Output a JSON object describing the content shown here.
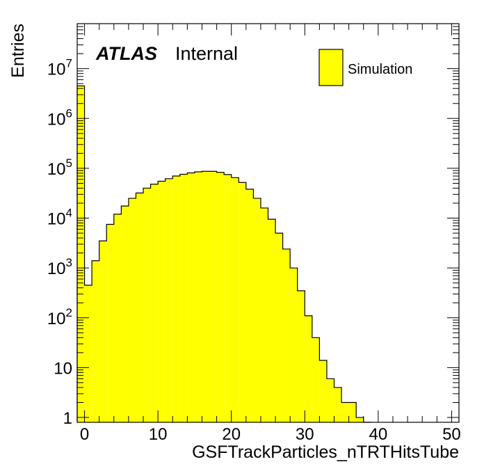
{
  "chart_data": {
    "type": "bar",
    "subtype": "histogram-step-filled",
    "xlabel": "GSFTrackParticles_nTRTHitsTube",
    "ylabel": "Entries",
    "atlas_label": "ATLAS",
    "atlas_status": "Internal",
    "yscale": "log",
    "xlim": [
      -1,
      51
    ],
    "ylim": [
      0.8,
      80000000
    ],
    "x_ticks": [
      "0",
      "10",
      "20",
      "30",
      "40",
      "50"
    ],
    "y_ticks": [
      {
        "base": "1",
        "exp": ""
      },
      {
        "base": "10",
        "exp": ""
      },
      {
        "base": "10",
        "exp": "2"
      },
      {
        "base": "10",
        "exp": "3"
      },
      {
        "base": "10",
        "exp": "4"
      },
      {
        "base": "10",
        "exp": "5"
      },
      {
        "base": "10",
        "exp": "6"
      },
      {
        "base": "10",
        "exp": "7"
      }
    ],
    "legend_position": "top-right",
    "grid": false,
    "series": [
      {
        "name": "Simulation",
        "color": "#ffff00",
        "edgecolor": "#000000",
        "bin_width": 1,
        "x": [
          -0.5,
          0.5,
          1.5,
          2.5,
          3.5,
          4.5,
          5.5,
          6.5,
          7.5,
          8.5,
          9.5,
          10.5,
          11.5,
          12.5,
          13.5,
          14.5,
          15.5,
          16.5,
          17.5,
          18.5,
          19.5,
          20.5,
          21.5,
          22.5,
          23.5,
          24.5,
          25.5,
          26.5,
          27.5,
          28.5,
          29.5,
          30.5,
          31.5,
          32.5,
          33.5,
          34.5,
          35.5,
          36.5,
          37.5,
          38.5
        ],
        "values": [
          4500000,
          450,
          1400,
          3500,
          7500,
          12000,
          17500,
          25000,
          32000,
          40000,
          48000,
          55000,
          62000,
          70000,
          76000,
          81000,
          85000,
          87000,
          87000,
          83000,
          75000,
          65000,
          52000,
          38000,
          25000,
          16000,
          9500,
          5000,
          2400,
          1000,
          350,
          110,
          40,
          14,
          6,
          4,
          2,
          2,
          1,
          0
        ]
      }
    ]
  }
}
